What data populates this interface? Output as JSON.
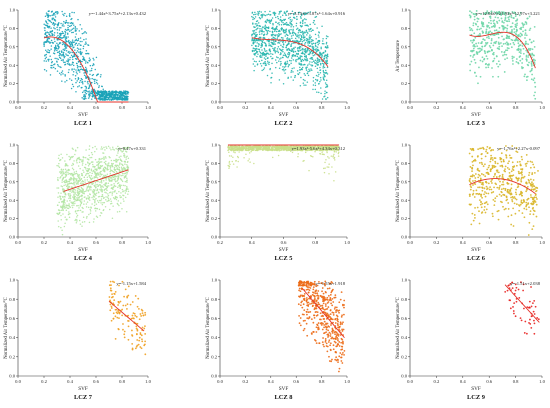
{
  "chart_data": [
    {
      "type": "scatter",
      "title": "LCZ 1",
      "xlabel": "SVF",
      "ylabel": "Normalized Air Temperature/°C",
      "equation": "y=-1.44x²-3.75x²+2.13x+0.432",
      "xlim": [
        0,
        1
      ],
      "ylim": [
        0,
        1
      ],
      "xticks": [
        "0.0",
        "0.2",
        "0.4",
        "0.6",
        "0.8",
        "1.0"
      ],
      "yticks": [
        "0.0",
        "0.2",
        "0.4",
        "0.6",
        "0.8",
        "1.0"
      ],
      "color": "#1aa3b8",
      "fit_coeffs": [
        0.432,
        2.13,
        -3.75,
        -1.44
      ],
      "fit_range": [
        0.2,
        0.85
      ],
      "density": "high",
      "point_extent": [
        0.2,
        0.85
      ]
    },
    {
      "type": "scatter",
      "title": "LCZ 2",
      "xlabel": "SVF",
      "ylabel": "Normalized Air Temperature/°C",
      "equation": "y=-3.15x²+3.87x²-1.64x+0.916",
      "xlim": [
        0,
        1
      ],
      "ylim": [
        0,
        1
      ],
      "xticks": [
        "0.0",
        "0.2",
        "0.4",
        "0.6",
        "0.8",
        "1.0"
      ],
      "yticks": [
        "0.0",
        "0.2",
        "0.4",
        "0.6",
        "0.8",
        "1.0"
      ],
      "color": "#27b6ae",
      "fit_coeffs": [
        0.916,
        -1.64,
        3.87,
        -3.15
      ],
      "fit_range": [
        0.25,
        0.85
      ],
      "density": "high",
      "point_extent": [
        0.25,
        0.85
      ]
    },
    {
      "type": "scatter",
      "title": "LCZ 3",
      "xlabel": "SVF",
      "ylabel": "Air Temperature",
      "equation": "y=-12.04x²+21.93x²-12.97x+3.221",
      "xlim": [
        0,
        1
      ],
      "ylim": [
        0,
        1
      ],
      "xticks": [
        "0.0",
        "0.2",
        "0.4",
        "0.6",
        "0.8",
        "1.0"
      ],
      "yticks": [
        "0.0",
        "0.2",
        "0.4",
        "0.6",
        "0.8",
        "1.0"
      ],
      "color": "#6fd6a8",
      "fit_coeffs": [
        3.221,
        -12.97,
        21.93,
        -12.04
      ],
      "fit_range": [
        0.45,
        0.95
      ],
      "density": "medium",
      "point_extent": [
        0.45,
        0.95
      ]
    },
    {
      "type": "scatter",
      "title": "LCZ 4",
      "xlabel": "SVF",
      "ylabel": "Normalized Air Temperature/°C",
      "equation": "y=0.47x+0.331",
      "xlim": [
        0,
        1
      ],
      "ylim": [
        0,
        1
      ],
      "xticks": [
        "0.0",
        "0.2",
        "0.4",
        "0.6",
        "0.8",
        "1.0"
      ],
      "yticks": [
        "0.0",
        "0.2",
        "0.4",
        "0.6",
        "0.8",
        "1.0"
      ],
      "color": "#b3e6a3",
      "fit_coeffs": [
        0.331,
        0.47
      ],
      "fit_range": [
        0.35,
        0.85
      ],
      "density": "high",
      "point_extent": [
        0.3,
        0.85
      ]
    },
    {
      "type": "scatter",
      "title": "LCZ 5",
      "xlabel": "SVF",
      "ylabel": "Normalized Air Temperature/°C",
      "equation": "y=1.93x²-5.6x²+4.34x+0.312",
      "xlim": [
        0.2,
        1
      ],
      "ylim": [
        0,
        1
      ],
      "xticks": [
        "0.2",
        "0.4",
        "0.6",
        "0.8",
        "1.0"
      ],
      "yticks": [
        "0.0",
        "0.2",
        "0.4",
        "0.6",
        "0.8",
        "1.0"
      ],
      "color": "#c9df8a",
      "fit_coeffs": [
        0.312,
        4.34,
        -5.6,
        1.93
      ],
      "fit_range": [
        0.25,
        0.95
      ],
      "density": "high",
      "point_extent": [
        0.25,
        0.95
      ]
    },
    {
      "type": "scatter",
      "title": "LCZ 6",
      "xlabel": "SVF",
      "ylabel": "Normalized Air Temperature/°C",
      "equation": "y=-1.76x²+2.27x-0.097",
      "xlim": [
        0,
        1
      ],
      "ylim": [
        0,
        1
      ],
      "xticks": [
        "0.0",
        "0.2",
        "0.4",
        "0.6",
        "0.8",
        "1.0"
      ],
      "yticks": [
        "0.0",
        "0.2",
        "0.4",
        "0.6",
        "0.8",
        "1.0"
      ],
      "color": "#d9b62a",
      "fit_coeffs": [
        -0.097,
        2.27,
        -1.76
      ],
      "fit_range": [
        0.45,
        0.95
      ],
      "density": "medium",
      "point_extent": [
        0.45,
        0.97
      ]
    },
    {
      "type": "scatter",
      "title": "LCZ 7",
      "xlabel": "SVF",
      "ylabel": "Normalized Air Temperature/°C",
      "equation": "y=-1.15x+1.584",
      "xlim": [
        0,
        1
      ],
      "ylim": [
        0,
        1
      ],
      "xticks": [
        "0.0",
        "0.2",
        "0.4",
        "0.6",
        "0.8",
        "1.0"
      ],
      "yticks": [
        "0.0",
        "0.2",
        "0.4",
        "0.6",
        "0.8",
        "1.0"
      ],
      "color": "#f0a020",
      "fit_coeffs": [
        1.584,
        -1.15
      ],
      "fit_range": [
        0.7,
        0.97
      ],
      "density": "low",
      "point_extent": [
        0.7,
        0.98
      ]
    },
    {
      "type": "scatter",
      "title": "LCZ 8",
      "xlabel": "SVF",
      "ylabel": "Normalized Air Temperature/°C",
      "equation": "y=-1.55x+1.918",
      "xlim": [
        0,
        1
      ],
      "ylim": [
        0,
        1
      ],
      "xticks": [
        "0.0",
        "0.2",
        "0.4",
        "0.6",
        "0.8",
        "1.0"
      ],
      "yticks": [
        "0.0",
        "0.2",
        "0.4",
        "0.6",
        "0.8",
        "1.0"
      ],
      "color": "#ec6a16",
      "fit_coeffs": [
        1.918,
        -1.55
      ],
      "fit_range": [
        0.65,
        0.98
      ],
      "density": "medium",
      "point_extent": [
        0.62,
        0.98
      ]
    },
    {
      "type": "scatter",
      "title": "LCZ 9",
      "xlabel": "SVF",
      "ylabel": "Normalized Air Temperature/°C",
      "equation": "y=-1.51x+2.038",
      "xlim": [
        0,
        1
      ],
      "ylim": [
        0,
        1
      ],
      "xticks": [
        "0.0",
        "0.2",
        "0.4",
        "0.6",
        "0.8",
        "1.0"
      ],
      "yticks": [
        "0.0",
        "0.2",
        "0.4",
        "0.6",
        "0.8",
        "1.0"
      ],
      "color": "#e8201e",
      "fit_coeffs": [
        2.038,
        -1.51
      ],
      "fit_range": [
        0.72,
        0.98
      ],
      "density": "sparse",
      "point_extent": [
        0.72,
        0.98
      ]
    }
  ]
}
